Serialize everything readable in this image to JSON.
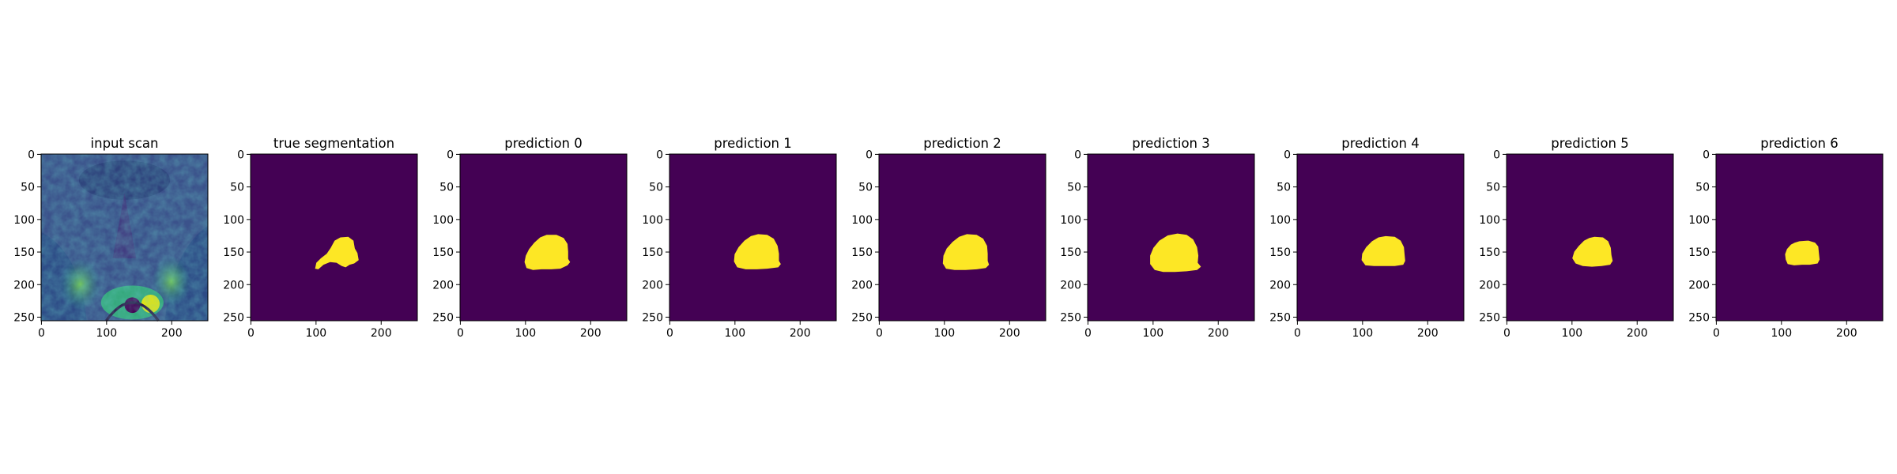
{
  "figure": {
    "background": "#ffffff",
    "colormap": {
      "low": "#440154",
      "high": "#fde725"
    }
  },
  "chart_data": [
    {
      "type": "heatmap",
      "title": "input scan",
      "content": "mri",
      "xlim": [
        0,
        255
      ],
      "ylim": [
        255,
        0
      ],
      "xticks": [
        0,
        100,
        200
      ],
      "yticks": [
        0,
        50,
        100,
        150,
        200,
        250
      ]
    },
    {
      "type": "heatmap",
      "title": "true segmentation",
      "content": "mask",
      "xlim": [
        0,
        255
      ],
      "ylim": [
        255,
        0
      ],
      "xticks": [
        0,
        100,
        200
      ],
      "yticks": [
        0,
        50,
        100,
        150,
        200,
        250
      ],
      "mask_outline": [
        [
          138,
          128
        ],
        [
          150,
          127
        ],
        [
          158,
          133
        ],
        [
          160,
          145
        ],
        [
          164,
          152
        ],
        [
          166,
          163
        ],
        [
          159,
          168
        ],
        [
          152,
          170
        ],
        [
          146,
          174
        ],
        [
          140,
          172
        ],
        [
          132,
          167
        ],
        [
          122,
          166
        ],
        [
          112,
          170
        ],
        [
          104,
          177
        ],
        [
          99,
          176
        ],
        [
          101,
          167
        ],
        [
          108,
          160
        ],
        [
          117,
          153
        ],
        [
          123,
          144
        ],
        [
          129,
          133
        ]
      ]
    },
    {
      "type": "heatmap",
      "title": "prediction 0",
      "content": "mask",
      "xlim": [
        0,
        255
      ],
      "ylim": [
        255,
        0
      ],
      "xticks": [
        0,
        100,
        200
      ],
      "yticks": [
        0,
        50,
        100,
        150,
        200,
        250
      ],
      "mask_outline": [
        [
          133,
          124
        ],
        [
          148,
          124
        ],
        [
          159,
          129
        ],
        [
          165,
          138
        ],
        [
          166,
          150
        ],
        [
          166,
          161
        ],
        [
          169,
          166
        ],
        [
          165,
          171
        ],
        [
          154,
          176
        ],
        [
          140,
          177
        ],
        [
          125,
          177
        ],
        [
          112,
          178
        ],
        [
          102,
          175
        ],
        [
          99,
          166
        ],
        [
          101,
          156
        ],
        [
          106,
          146
        ],
        [
          114,
          136
        ],
        [
          123,
          128
        ]
      ]
    },
    {
      "type": "heatmap",
      "title": "prediction 1",
      "content": "mask",
      "xlim": [
        0,
        255
      ],
      "ylim": [
        255,
        0
      ],
      "xticks": [
        0,
        100,
        200
      ],
      "yticks": [
        0,
        50,
        100,
        150,
        200,
        250
      ],
      "mask_outline": [
        [
          136,
          123
        ],
        [
          150,
          124
        ],
        [
          160,
          130
        ],
        [
          166,
          141
        ],
        [
          168,
          153
        ],
        [
          168,
          164
        ],
        [
          171,
          169
        ],
        [
          167,
          174
        ],
        [
          150,
          176
        ],
        [
          134,
          177
        ],
        [
          117,
          177
        ],
        [
          104,
          174
        ],
        [
          99,
          165
        ],
        [
          100,
          154
        ],
        [
          106,
          143
        ],
        [
          115,
          133
        ],
        [
          125,
          126
        ]
      ]
    },
    {
      "type": "heatmap",
      "title": "prediction 2",
      "content": "mask",
      "xlim": [
        0,
        255
      ],
      "ylim": [
        255,
        0
      ],
      "xticks": [
        0,
        100,
        200
      ],
      "yticks": [
        0,
        50,
        100,
        150,
        200,
        250
      ],
      "mask_outline": [
        [
          135,
          123
        ],
        [
          150,
          124
        ],
        [
          160,
          130
        ],
        [
          166,
          141
        ],
        [
          167,
          153
        ],
        [
          167,
          164
        ],
        [
          169,
          170
        ],
        [
          164,
          175
        ],
        [
          150,
          177
        ],
        [
          133,
          178
        ],
        [
          116,
          178
        ],
        [
          103,
          176
        ],
        [
          98,
          168
        ],
        [
          99,
          156
        ],
        [
          104,
          145
        ],
        [
          113,
          135
        ],
        [
          123,
          127
        ]
      ]
    },
    {
      "type": "heatmap",
      "title": "prediction 3",
      "content": "mask",
      "xlim": [
        0,
        255
      ],
      "ylim": [
        255,
        0
      ],
      "xticks": [
        0,
        100,
        200
      ],
      "yticks": [
        0,
        50,
        100,
        150,
        200,
        250
      ],
      "mask_outline": [
        [
          138,
          122
        ],
        [
          152,
          124
        ],
        [
          162,
          131
        ],
        [
          168,
          143
        ],
        [
          170,
          156
        ],
        [
          169,
          167
        ],
        [
          174,
          173
        ],
        [
          168,
          178
        ],
        [
          152,
          180
        ],
        [
          134,
          181
        ],
        [
          116,
          181
        ],
        [
          103,
          178
        ],
        [
          96,
          169
        ],
        [
          96,
          156
        ],
        [
          101,
          144
        ],
        [
          110,
          133
        ],
        [
          123,
          125
        ]
      ]
    },
    {
      "type": "heatmap",
      "title": "prediction 4",
      "content": "mask",
      "xlim": [
        0,
        255
      ],
      "ylim": [
        255,
        0
      ],
      "xticks": [
        0,
        100,
        200
      ],
      "yticks": [
        0,
        50,
        100,
        150,
        200,
        250
      ],
      "mask_outline": [
        [
          136,
          126
        ],
        [
          150,
          127
        ],
        [
          159,
          133
        ],
        [
          164,
          143
        ],
        [
          165,
          154
        ],
        [
          166,
          164
        ],
        [
          163,
          170
        ],
        [
          150,
          172
        ],
        [
          134,
          172
        ],
        [
          118,
          172
        ],
        [
          105,
          171
        ],
        [
          99,
          163
        ],
        [
          100,
          153
        ],
        [
          106,
          143
        ],
        [
          115,
          134
        ],
        [
          125,
          128
        ]
      ]
    },
    {
      "type": "heatmap",
      "title": "prediction 5",
      "content": "mask",
      "xlim": [
        0,
        255
      ],
      "ylim": [
        255,
        0
      ],
      "xticks": [
        0,
        100,
        200
      ],
      "yticks": [
        0,
        50,
        100,
        150,
        200,
        250
      ],
      "mask_outline": [
        [
          135,
          127
        ],
        [
          148,
          128
        ],
        [
          156,
          134
        ],
        [
          160,
          144
        ],
        [
          161,
          155
        ],
        [
          163,
          164
        ],
        [
          159,
          170
        ],
        [
          146,
          172
        ],
        [
          131,
          173
        ],
        [
          117,
          172
        ],
        [
          106,
          168
        ],
        [
          101,
          160
        ],
        [
          104,
          150
        ],
        [
          111,
          141
        ],
        [
          119,
          133
        ],
        [
          127,
          129
        ]
      ]
    },
    {
      "type": "heatmap",
      "title": "prediction 6",
      "content": "mask",
      "xlim": [
        0,
        255
      ],
      "ylim": [
        255,
        0
      ],
      "xticks": [
        0,
        100,
        200
      ],
      "yticks": [
        0,
        50,
        100,
        150,
        200,
        250
      ],
      "mask_outline": [
        [
          128,
          134
        ],
        [
          142,
          133
        ],
        [
          152,
          136
        ],
        [
          157,
          142
        ],
        [
          158,
          152
        ],
        [
          159,
          162
        ],
        [
          156,
          168
        ],
        [
          144,
          170
        ],
        [
          132,
          170
        ],
        [
          120,
          171
        ],
        [
          110,
          169
        ],
        [
          107,
          162
        ],
        [
          106,
          154
        ],
        [
          109,
          146
        ],
        [
          115,
          139
        ],
        [
          121,
          136
        ]
      ]
    }
  ]
}
